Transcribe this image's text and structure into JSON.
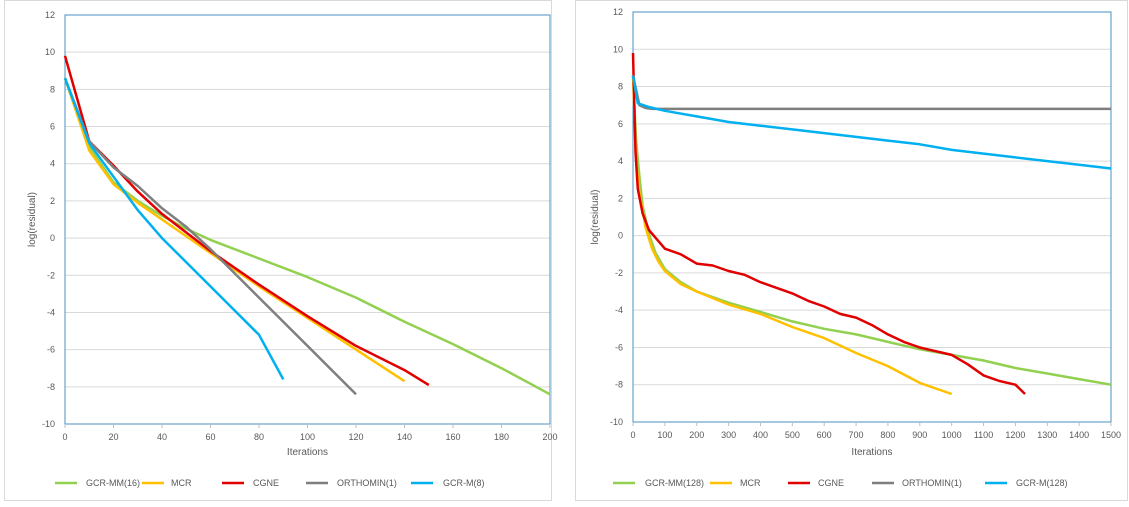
{
  "chart_data": [
    {
      "type": "line",
      "xlabel": "Iterations",
      "ylabel": "log(residual)",
      "xlim": [
        0,
        200
      ],
      "ylim": [
        -10,
        12
      ],
      "xticks": [
        "0",
        "20",
        "40",
        "60",
        "80",
        "100",
        "120",
        "140",
        "160",
        "180",
        "200"
      ],
      "yticks": [
        "-10",
        "-8",
        "-6",
        "-4",
        "-2",
        "0",
        "2",
        "4",
        "6",
        "8",
        "10",
        "12"
      ],
      "grid": "horizontal",
      "legend": "bottom",
      "series": [
        {
          "name": "GCR-MM(16)",
          "color": "#92d050",
          "points": [
            [
              0,
              8.6
            ],
            [
              10,
              4.9
            ],
            [
              20,
              3.0
            ],
            [
              30,
              2.0
            ],
            [
              40,
              1.2
            ],
            [
              50,
              0.5
            ],
            [
              60,
              -0.1
            ],
            [
              80,
              -1.1
            ],
            [
              100,
              -2.1
            ],
            [
              120,
              -3.2
            ],
            [
              140,
              -4.5
            ],
            [
              160,
              -5.7
            ],
            [
              180,
              -7.0
            ],
            [
              200,
              -8.4
            ]
          ]
        },
        {
          "name": "MCR",
          "color": "#ffc000",
          "points": [
            [
              0,
              8.6
            ],
            [
              10,
              4.7
            ],
            [
              20,
              2.9
            ],
            [
              30,
              1.9
            ],
            [
              40,
              1.0
            ],
            [
              60,
              -0.8
            ],
            [
              80,
              -2.6
            ],
            [
              100,
              -4.3
            ],
            [
              120,
              -6.0
            ],
            [
              140,
              -7.7
            ]
          ]
        },
        {
          "name": "CGNE",
          "color": "#e00000",
          "points": [
            [
              0,
              9.8
            ],
            [
              10,
              5.2
            ],
            [
              20,
              3.9
            ],
            [
              30,
              2.5
            ],
            [
              40,
              1.3
            ],
            [
              60,
              -0.7
            ],
            [
              80,
              -2.5
            ],
            [
              100,
              -4.2
            ],
            [
              120,
              -5.8
            ],
            [
              140,
              -7.1
            ],
            [
              150,
              -7.9
            ]
          ]
        },
        {
          "name": "ORTHOMIN(1)",
          "color": "#7f7f7f",
          "points": [
            [
              0,
              8.6
            ],
            [
              10,
              5.2
            ],
            [
              20,
              3.8
            ],
            [
              30,
              2.8
            ],
            [
              40,
              1.6
            ],
            [
              50,
              0.6
            ],
            [
              60,
              -0.6
            ],
            [
              80,
              -3.2
            ],
            [
              100,
              -5.8
            ],
            [
              120,
              -8.4
            ]
          ]
        },
        {
          "name": "GCR-M(8)",
          "color": "#00b0f0",
          "points": [
            [
              0,
              8.6
            ],
            [
              10,
              5.1
            ],
            [
              20,
              3.3
            ],
            [
              30,
              1.5
            ],
            [
              40,
              0.0
            ],
            [
              60,
              -2.6
            ],
            [
              80,
              -5.2
            ],
            [
              90,
              -7.6
            ]
          ]
        }
      ]
    },
    {
      "type": "line",
      "xlabel": "Iterations",
      "ylabel": "log(residual)",
      "xlim": [
        0,
        1500
      ],
      "ylim": [
        -10,
        12
      ],
      "xticks": [
        "0",
        "100",
        "200",
        "300",
        "400",
        "500",
        "600",
        "700",
        "800",
        "900",
        "1000",
        "1100",
        "1200",
        "1300",
        "1400",
        "1500"
      ],
      "yticks": [
        "-10",
        "-8",
        "-6",
        "-4",
        "-2",
        "0",
        "2",
        "4",
        "6",
        "8",
        "10",
        "12"
      ],
      "grid": "horizontal",
      "legend": "bottom",
      "series": [
        {
          "name": "GCR-MM(128)",
          "color": "#92d050",
          "points": [
            [
              0,
              8.6
            ],
            [
              10,
              5.0
            ],
            [
              20,
              3.2
            ],
            [
              30,
              1.6
            ],
            [
              50,
              0.1
            ],
            [
              70,
              -0.9
            ],
            [
              100,
              -1.8
            ],
            [
              150,
              -2.5
            ],
            [
              200,
              -3.0
            ],
            [
              300,
              -3.6
            ],
            [
              400,
              -4.1
            ],
            [
              500,
              -4.6
            ],
            [
              600,
              -5.0
            ],
            [
              700,
              -5.3
            ],
            [
              800,
              -5.7
            ],
            [
              900,
              -6.1
            ],
            [
              1000,
              -6.4
            ],
            [
              1100,
              -6.7
            ],
            [
              1200,
              -7.1
            ],
            [
              1300,
              -7.4
            ],
            [
              1400,
              -7.7
            ],
            [
              1500,
              -8.0
            ]
          ]
        },
        {
          "name": "MCR",
          "color": "#ffc000",
          "points": [
            [
              0,
              8.6
            ],
            [
              10,
              4.0
            ],
            [
              20,
              2.3
            ],
            [
              40,
              0.4
            ],
            [
              60,
              -0.7
            ],
            [
              80,
              -1.4
            ],
            [
              100,
              -1.9
            ],
            [
              150,
              -2.6
            ],
            [
              200,
              -3.0
            ],
            [
              300,
              -3.7
            ],
            [
              400,
              -4.2
            ],
            [
              500,
              -4.9
            ],
            [
              600,
              -5.5
            ],
            [
              700,
              -6.3
            ],
            [
              800,
              -7.0
            ],
            [
              900,
              -7.9
            ],
            [
              1000,
              -8.5
            ]
          ]
        },
        {
          "name": "CGNE",
          "color": "#e00000",
          "points": [
            [
              0,
              9.8
            ],
            [
              8,
              4.5
            ],
            [
              15,
              2.5
            ],
            [
              30,
              1.2
            ],
            [
              50,
              0.3
            ],
            [
              80,
              -0.3
            ],
            [
              100,
              -0.7
            ],
            [
              150,
              -1.0
            ],
            [
              200,
              -1.5
            ],
            [
              250,
              -1.6
            ],
            [
              300,
              -1.9
            ],
            [
              350,
              -2.1
            ],
            [
              400,
              -2.5
            ],
            [
              450,
              -2.8
            ],
            [
              500,
              -3.1
            ],
            [
              550,
              -3.5
            ],
            [
              600,
              -3.8
            ],
            [
              650,
              -4.2
            ],
            [
              700,
              -4.4
            ],
            [
              750,
              -4.8
            ],
            [
              800,
              -5.3
            ],
            [
              850,
              -5.7
            ],
            [
              900,
              -6.0
            ],
            [
              950,
              -6.2
            ],
            [
              1000,
              -6.4
            ],
            [
              1050,
              -6.9
            ],
            [
              1100,
              -7.5
            ],
            [
              1150,
              -7.8
            ],
            [
              1200,
              -8.0
            ],
            [
              1230,
              -8.5
            ]
          ]
        },
        {
          "name": "ORTHOMIN(1)",
          "color": "#7f7f7f",
          "points": [
            [
              0,
              8.6
            ],
            [
              20,
              7.0
            ],
            [
              40,
              6.85
            ],
            [
              60,
              6.8
            ],
            [
              100,
              6.8
            ],
            [
              1500,
              6.8
            ]
          ]
        },
        {
          "name": "GCR-M(128)",
          "color": "#00b0f0",
          "points": [
            [
              0,
              8.6
            ],
            [
              15,
              7.1
            ],
            [
              50,
              6.9
            ],
            [
              100,
              6.7
            ],
            [
              200,
              6.4
            ],
            [
              300,
              6.1
            ],
            [
              400,
              5.9
            ],
            [
              500,
              5.7
            ],
            [
              600,
              5.5
            ],
            [
              700,
              5.3
            ],
            [
              800,
              5.1
            ],
            [
              900,
              4.9
            ],
            [
              1000,
              4.6
            ],
            [
              1100,
              4.4
            ],
            [
              1200,
              4.2
            ],
            [
              1300,
              4.0
            ],
            [
              1400,
              3.8
            ],
            [
              1500,
              3.6
            ]
          ]
        }
      ]
    }
  ]
}
